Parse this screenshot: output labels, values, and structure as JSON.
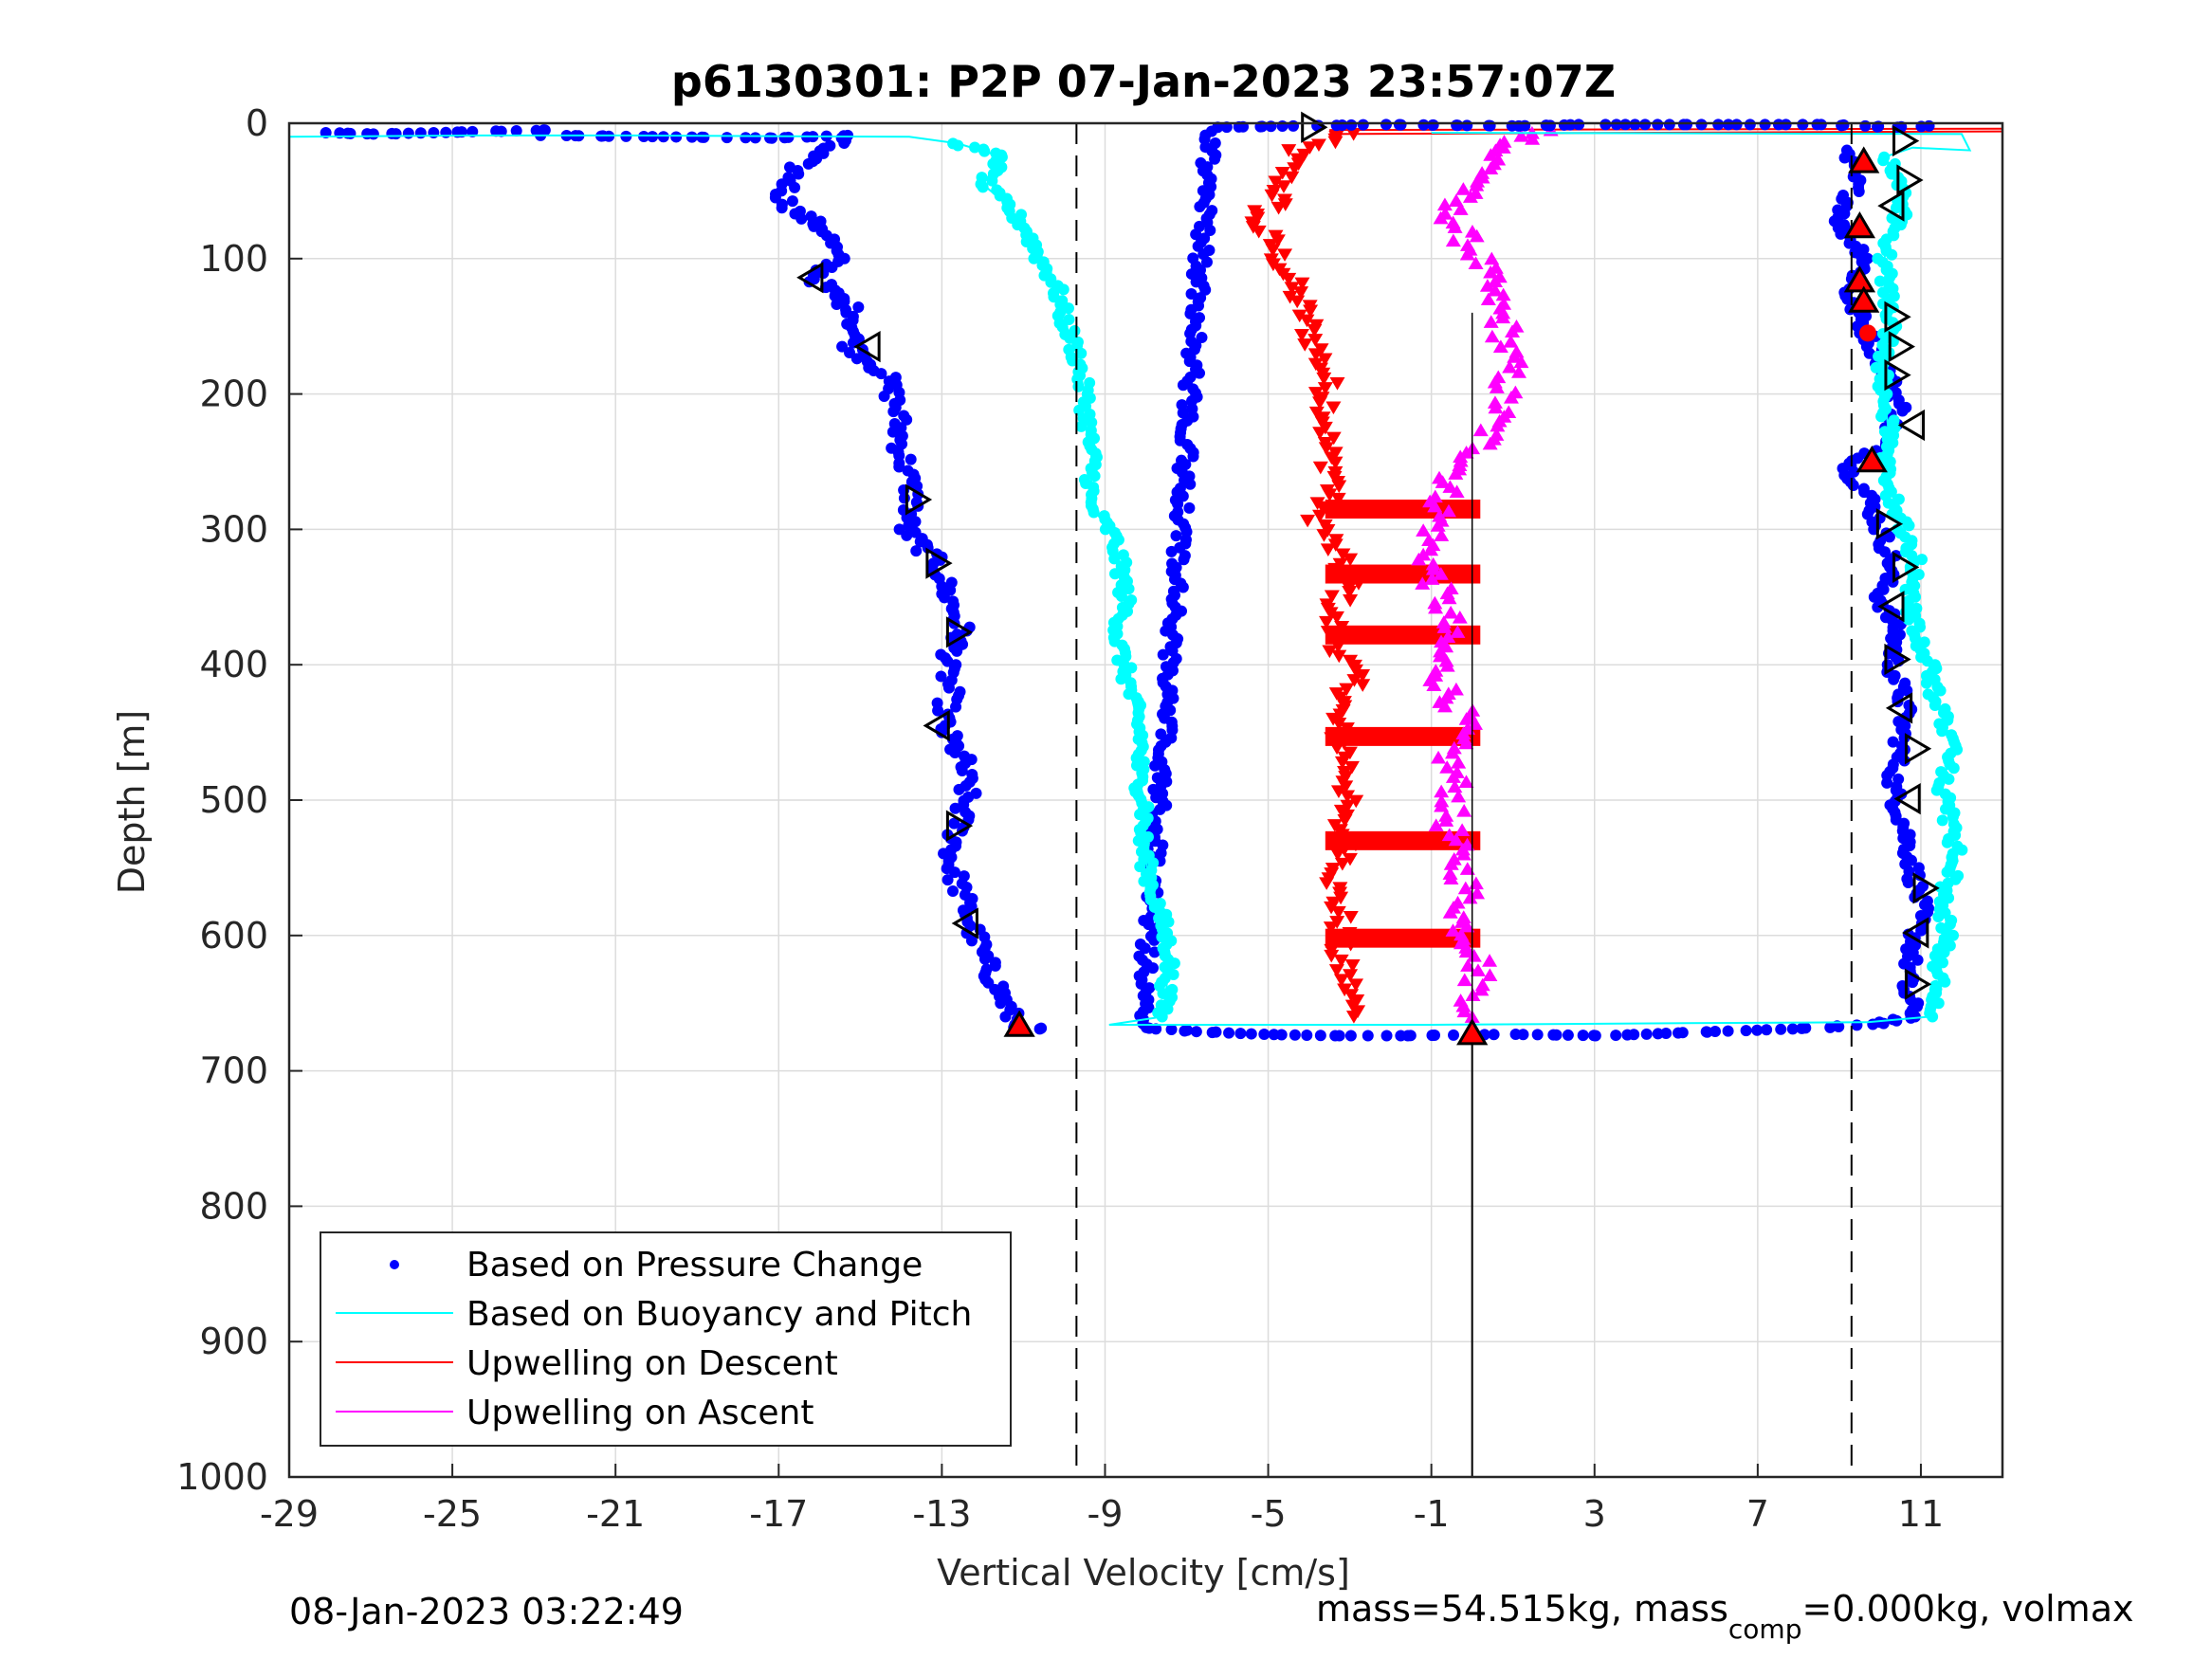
{
  "chart_data": {
    "type": "scatter",
    "title": "p6130301: P2P 07-Jan-2023 23:57:07Z",
    "xlabel": "Vertical Velocity [cm/s]",
    "ylabel": "Depth [m]",
    "xlim": [
      -29,
      13
    ],
    "ylim": [
      0,
      1000
    ],
    "y_reversed": true,
    "grid": true,
    "xticks": [
      "-29",
      "-25",
      "-21",
      "-17",
      "-13",
      "-9",
      "-5",
      "-1",
      "3",
      "7",
      "11"
    ],
    "yticks": [
      "0",
      "100",
      "200",
      "300",
      "400",
      "500",
      "600",
      "700",
      "800",
      "900",
      "1000"
    ],
    "legend_position": "bottom-left",
    "legend": [
      {
        "label": "Based on Pressure Change",
        "color": "#0000ff",
        "marker": "dot"
      },
      {
        "label": "Based on Buoyancy and Pitch",
        "color": "#00ffff",
        "marker": "line"
      },
      {
        "label": "Upwelling on Descent",
        "color": "#ff0000",
        "marker": "line"
      },
      {
        "label": "Upwelling on Ascent",
        "color": "#ff00ff",
        "marker": "line"
      }
    ],
    "reference_lines": {
      "dashed_x": [
        -9.7,
        9.3
      ],
      "solid_x": 0.0,
      "solid_x_depth_range": [
        670,
        1000
      ]
    },
    "series": [
      {
        "name": "Based on Pressure Change",
        "color": "#0000ff",
        "kind": "points",
        "descent": [
          [
            -28.2,
            7
          ],
          [
            -26.8,
            8
          ],
          [
            -22.6,
            5
          ],
          [
            -22.7,
            9
          ],
          [
            -19.8,
            10
          ],
          [
            -17.1,
            11
          ],
          [
            -15.3,
            9
          ],
          [
            -16.5,
            30
          ],
          [
            -16.9,
            55
          ],
          [
            -16.6,
            65
          ],
          [
            -15.8,
            80
          ],
          [
            -15.6,
            100
          ],
          [
            -16.1,
            115
          ],
          [
            -15.1,
            140
          ],
          [
            -15.2,
            165
          ],
          [
            -14.4,
            185
          ],
          [
            -14.1,
            210
          ],
          [
            -14.0,
            240
          ],
          [
            -13.8,
            265
          ],
          [
            -13.7,
            280
          ],
          [
            -13.9,
            300
          ],
          [
            -13.1,
            325
          ],
          [
            -12.9,
            345
          ],
          [
            -12.5,
            375
          ],
          [
            -12.9,
            400
          ],
          [
            -12.8,
            420
          ],
          [
            -13.0,
            445
          ],
          [
            -12.5,
            470
          ],
          [
            -12.4,
            495
          ],
          [
            -12.6,
            520
          ],
          [
            -12.8,
            545
          ],
          [
            -12.5,
            570
          ],
          [
            -12.3,
            590
          ],
          [
            -12.0,
            615
          ],
          [
            -11.6,
            640
          ],
          [
            -11.3,
            660
          ],
          [
            -11.0,
            668
          ],
          [
            -10.6,
            669
          ]
        ],
        "ascent": [
          [
            9.1,
            20
          ],
          [
            9.4,
            45
          ],
          [
            9.0,
            75
          ],
          [
            9.7,
            100
          ],
          [
            9.2,
            125
          ],
          [
            9.6,
            150
          ],
          [
            10.1,
            180
          ],
          [
            10.5,
            210
          ],
          [
            10.0,
            240
          ],
          [
            9.2,
            255
          ],
          [
            9.7,
            275
          ],
          [
            10.0,
            300
          ],
          [
            10.3,
            325
          ],
          [
            10.0,
            350
          ],
          [
            10.4,
            375
          ],
          [
            10.3,
            400
          ],
          [
            10.6,
            430
          ],
          [
            10.5,
            460
          ],
          [
            10.3,
            490
          ],
          [
            10.6,
            520
          ],
          [
            10.8,
            550
          ],
          [
            11.0,
            580
          ],
          [
            10.8,
            610
          ],
          [
            10.6,
            640
          ],
          [
            10.9,
            660
          ],
          [
            9.9,
            665
          ],
          [
            8.6,
            668
          ],
          [
            7.0,
            670
          ],
          [
            5.0,
            672
          ],
          [
            3.2,
            674
          ],
          [
            1.0,
            673
          ],
          [
            -1.6,
            674
          ],
          [
            -3.5,
            674
          ],
          [
            -5.2,
            673
          ],
          [
            -6.7,
            671
          ],
          [
            -8.1,
            668
          ],
          [
            -6.4,
            3
          ],
          [
            -4.2,
            2
          ],
          [
            -2.2,
            1
          ],
          [
            1.2,
            2
          ],
          [
            2.8,
            1
          ],
          [
            8.7,
            1
          ],
          [
            10.3,
            3
          ],
          [
            11.2,
            2
          ]
        ]
      },
      {
        "name": "Based on Buoyancy and Pitch",
        "color": "#00ffff",
        "kind": "line",
        "descent": [
          [
            -29,
            10
          ],
          [
            -24.5,
            9
          ],
          [
            -20.6,
            9
          ],
          [
            -13.8,
            10
          ],
          [
            -12.6,
            15
          ],
          [
            -11.5,
            25
          ],
          [
            -12.0,
            45
          ],
          [
            -11.4,
            60
          ],
          [
            -10.9,
            80
          ],
          [
            -10.6,
            100
          ],
          [
            -10.2,
            120
          ],
          [
            -10.0,
            145
          ],
          [
            -9.7,
            170
          ],
          [
            -9.5,
            200
          ],
          [
            -9.4,
            230
          ],
          [
            -9.3,
            255
          ],
          [
            -9.4,
            280
          ],
          [
            -8.8,
            305
          ],
          [
            -8.6,
            330
          ],
          [
            -8.5,
            355
          ],
          [
            -8.7,
            380
          ],
          [
            -8.5,
            405
          ],
          [
            -8.3,
            430
          ],
          [
            -8.1,
            455
          ],
          [
            -8.2,
            480
          ],
          [
            -8.0,
            505
          ],
          [
            -8.1,
            530
          ],
          [
            -7.9,
            560
          ],
          [
            -7.6,
            590
          ],
          [
            -7.4,
            615
          ],
          [
            -7.5,
            640
          ],
          [
            -7.6,
            660
          ],
          [
            -8.9,
            666
          ],
          [
            -1.0,
            666
          ],
          [
            4.0,
            665
          ],
          [
            9.7,
            664
          ]
        ],
        "ascent": [
          [
            9.7,
            664
          ],
          [
            11.2,
            660
          ],
          [
            11.5,
            640
          ],
          [
            11.4,
            620
          ],
          [
            11.7,
            600
          ],
          [
            11.5,
            575
          ],
          [
            11.9,
            545
          ],
          [
            11.7,
            515
          ],
          [
            11.5,
            490
          ],
          [
            11.8,
            460
          ],
          [
            11.4,
            430
          ],
          [
            11.2,
            400
          ],
          [
            10.9,
            375
          ],
          [
            10.7,
            350
          ],
          [
            10.9,
            325
          ],
          [
            10.6,
            300
          ],
          [
            10.3,
            275
          ],
          [
            10.1,
            250
          ],
          [
            10.2,
            225
          ],
          [
            10.1,
            200
          ],
          [
            10.0,
            175
          ],
          [
            10.3,
            150
          ],
          [
            10.2,
            125
          ],
          [
            10.1,
            100
          ],
          [
            10.3,
            80
          ],
          [
            10.6,
            60
          ],
          [
            10.5,
            40
          ],
          [
            10.1,
            25
          ],
          [
            10.8,
            18
          ],
          [
            12.2,
            20
          ],
          [
            12.0,
            8
          ],
          [
            -1.0,
            7
          ]
        ]
      },
      {
        "name": "Upwelling on Descent",
        "color": "#ff0000",
        "kind": "triangle-down",
        "points": [
          [
            -3.0,
            8
          ],
          [
            -4.3,
            20
          ],
          [
            -4.6,
            40
          ],
          [
            -4.8,
            60
          ],
          [
            -5.4,
            70
          ],
          [
            -4.9,
            90
          ],
          [
            -4.5,
            115
          ],
          [
            -4.2,
            135
          ],
          [
            -3.9,
            160
          ],
          [
            -3.6,
            185
          ],
          [
            -3.5,
            210
          ],
          [
            -3.6,
            240
          ],
          [
            -3.3,
            265
          ],
          [
            -3.8,
            290
          ],
          [
            -3.4,
            315
          ],
          [
            -3.0,
            340
          ],
          [
            -3.5,
            365
          ],
          [
            -3.2,
            390
          ],
          [
            -2.9,
            415
          ],
          [
            -3.4,
            440
          ],
          [
            -3.1,
            465
          ],
          [
            -3.0,
            490
          ],
          [
            -3.3,
            515
          ],
          [
            -3.0,
            540
          ],
          [
            -3.4,
            565
          ],
          [
            -3.2,
            590
          ],
          [
            -3.3,
            615
          ],
          [
            -3.0,
            640
          ],
          [
            -2.9,
            660
          ]
        ],
        "bands_depth": [
          285,
          333,
          378,
          453,
          530,
          602
        ],
        "band_x_range": [
          -3.6,
          0.2
        ]
      },
      {
        "name": "Upwelling on Ascent",
        "color": "#ff00ff",
        "kind": "triangle-up",
        "points": [
          [
            1.8,
            5
          ],
          [
            0.6,
            20
          ],
          [
            0.3,
            40
          ],
          [
            -0.6,
            60
          ],
          [
            -0.3,
            80
          ],
          [
            0.2,
            100
          ],
          [
            0.4,
            120
          ],
          [
            0.8,
            150
          ],
          [
            0.9,
            180
          ],
          [
            0.7,
            210
          ],
          [
            0.2,
            240
          ],
          [
            -0.6,
            265
          ],
          [
            -0.8,
            290
          ],
          [
            -1.1,
            315
          ],
          [
            -0.9,
            340
          ],
          [
            -0.6,
            365
          ],
          [
            -0.8,
            390
          ],
          [
            -0.7,
            415
          ],
          [
            -0.2,
            440
          ],
          [
            -0.6,
            465
          ],
          [
            -0.4,
            490
          ],
          [
            -0.6,
            515
          ],
          [
            -0.4,
            540
          ],
          [
            -0.1,
            565
          ],
          [
            -0.3,
            590
          ],
          [
            0.2,
            615
          ],
          [
            0.1,
            640
          ],
          [
            0.0,
            660
          ]
        ]
      }
    ],
    "highlight_markers": {
      "open_triangles": [
        [
          -16.2,
          114,
          "left"
        ],
        [
          -14.8,
          165,
          "left"
        ],
        [
          -13.6,
          278,
          "right"
        ],
        [
          -13.1,
          325,
          "right"
        ],
        [
          -12.6,
          376,
          "right"
        ],
        [
          -13.1,
          445,
          "left"
        ],
        [
          -12.6,
          519,
          "right"
        ],
        [
          -12.4,
          591,
          "left"
        ],
        [
          -3.9,
          3,
          "right"
        ],
        [
          10.6,
          13,
          "right"
        ],
        [
          10.7,
          42,
          "right"
        ],
        [
          10.3,
          61,
          "left"
        ],
        [
          10.4,
          143,
          "right"
        ],
        [
          10.5,
          165,
          "right"
        ],
        [
          10.4,
          186,
          "right"
        ],
        [
          10.8,
          223,
          "left"
        ],
        [
          10.2,
          296,
          "right"
        ],
        [
          10.6,
          328,
          "right"
        ],
        [
          10.3,
          357,
          "left"
        ],
        [
          10.4,
          396,
          "right"
        ],
        [
          10.5,
          432,
          "left"
        ],
        [
          10.9,
          462,
          "right"
        ],
        [
          10.7,
          499,
          "left"
        ],
        [
          11.1,
          565,
          "right"
        ],
        [
          10.9,
          598,
          "left"
        ],
        [
          10.9,
          636,
          "right"
        ]
      ],
      "red_triangles": [
        [
          9.6,
          28
        ],
        [
          9.5,
          76
        ],
        [
          9.5,
          116
        ],
        [
          9.6,
          131
        ],
        [
          9.8,
          249
        ],
        [
          -11.1,
          666
        ],
        [
          0.0,
          672
        ]
      ],
      "red_dots": [
        [
          9.7,
          155
        ]
      ]
    }
  },
  "footer": {
    "timestamp": "08-Jan-2023 03:22:49",
    "mass_text_1": "mass=54.515kg, mass",
    "mass_sub": "comp",
    "mass_text_2": "=0.000kg, volmax"
  }
}
